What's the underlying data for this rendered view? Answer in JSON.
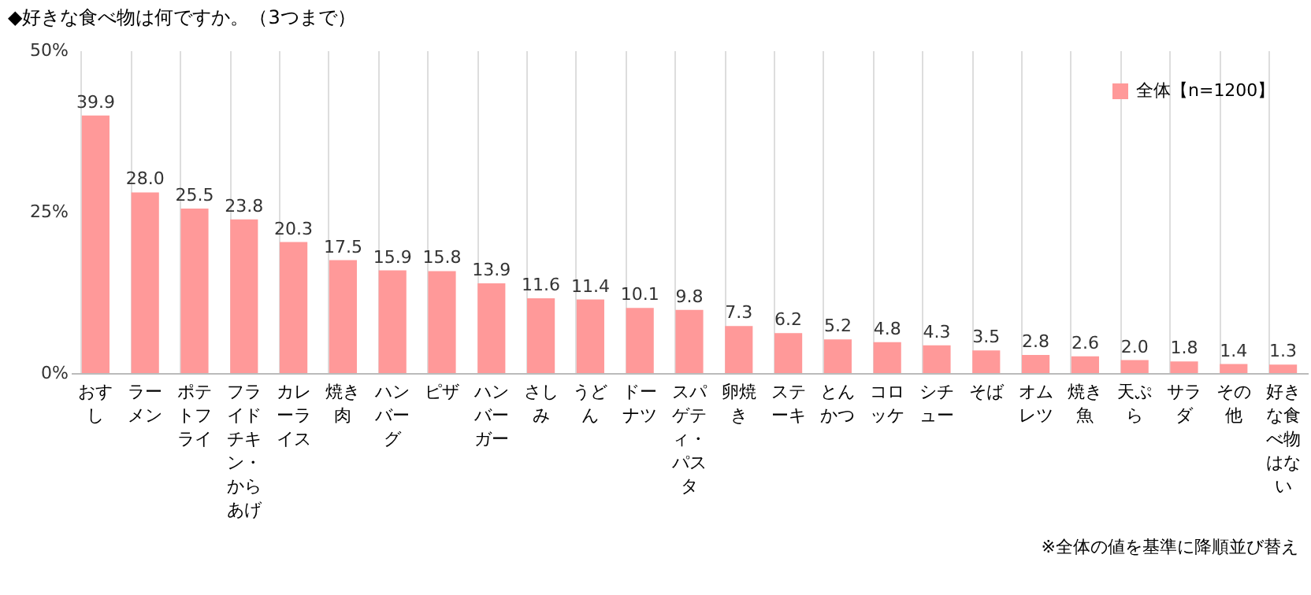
{
  "chart_data": {
    "type": "bar",
    "title": "◆好きな食べ物は何ですか。（3つまで）",
    "categories": [
      "おすし",
      "ラーメン",
      "ポテトフライ",
      "フライドチキン・からあげ",
      "カレーライス",
      "焼き肉",
      "ハンバーグ",
      "ピザ",
      "ハンバーガー",
      "さしみ",
      "うどん",
      "ドーナツ",
      "スパゲティ・パスタ",
      "卵焼き",
      "ステーキ",
      "とんかつ",
      "コロッケ",
      "シチュー",
      "そば",
      "オムレツ",
      "焼き魚",
      "天ぷら",
      "サラダ",
      "その他",
      "好きな食べ物はない"
    ],
    "series": [
      {
        "name": "全体【n=1200】",
        "color": "#ff9999",
        "values": [
          39.9,
          28.0,
          25.5,
          23.8,
          20.3,
          17.5,
          15.9,
          15.8,
          13.9,
          11.6,
          11.4,
          10.1,
          9.8,
          7.3,
          6.2,
          5.2,
          4.8,
          4.3,
          3.5,
          2.8,
          2.6,
          2.0,
          1.8,
          1.4,
          1.3
        ],
        "value_labels": [
          "39.9",
          "28.0",
          "25.5",
          "23.8",
          "20.3",
          "17.5",
          "15.9",
          "15.8",
          "13.9",
          "11.6",
          "11.4",
          "10.1",
          "9.8",
          "7.3",
          "6.2",
          "5.2",
          "4.8",
          "4.3",
          "3.5",
          "2.8",
          "2.6",
          "2.0",
          "1.8",
          "1.4",
          "1.3"
        ]
      }
    ],
    "ylim": [
      0,
      50
    ],
    "yticks": [
      {
        "value": 0,
        "label": "0%"
      },
      {
        "value": 25,
        "label": "25%"
      },
      {
        "value": 50,
        "label": "50%"
      }
    ],
    "grid": "x",
    "legend": "top right",
    "annotations": [
      "※全体の値を基準に降順並び替え"
    ]
  }
}
